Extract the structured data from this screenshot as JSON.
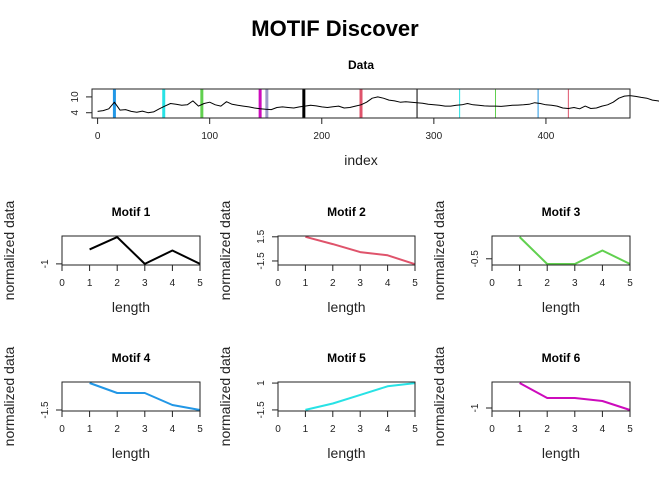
{
  "figure": {
    "title": "MOTIF Discover"
  },
  "chart_data": [
    {
      "type": "line",
      "title": "Data",
      "xlabel": "index",
      "ylabel": "",
      "xlim": [
        -5,
        475
      ],
      "ylim": [
        2,
        13
      ],
      "xticks": [
        0,
        100,
        200,
        300,
        400
      ],
      "yticks": [
        4,
        10
      ],
      "grid": false,
      "x_step": 5,
      "values": [
        4.5,
        4.8,
        5.5,
        8.0,
        5.0,
        5.2,
        4.5,
        4.2,
        4.6,
        4.0,
        4.3,
        5.5,
        6.5,
        7.5,
        7.2,
        6.8,
        7.0,
        8.5,
        6.5,
        7.5,
        8.0,
        7.0,
        6.5,
        8.2,
        7.2,
        6.8,
        6.5,
        6.2,
        5.8,
        5.5,
        5.3,
        5.2,
        6.0,
        6.2,
        6.0,
        5.8,
        6.2,
        6.5,
        6.8,
        6.6,
        6.2,
        6.0,
        6.3,
        6.5,
        5.8,
        6.0,
        6.5,
        7.0,
        8.0,
        9.5,
        10.0,
        9.5,
        8.8,
        8.5,
        8.0,
        8.2,
        8.0,
        7.8,
        7.6,
        7.2,
        7.0,
        6.8,
        6.5,
        6.5,
        6.8,
        7.0,
        7.5,
        7.0,
        6.8,
        6.6,
        6.5,
        6.5,
        6.4,
        6.6,
        6.8,
        6.9,
        7.0,
        7.2,
        7.8,
        7.5,
        7.0,
        6.8,
        6.5,
        5.8,
        5.6,
        6.0,
        5.5,
        6.5,
        5.6,
        5.8,
        6.5,
        7.0,
        8.0,
        9.5,
        10.3,
        10.5,
        10.2,
        9.8,
        9.5,
        8.8,
        8.5,
        8.0,
        7.5,
        7.2,
        7.5,
        7.0,
        9.0,
        10.0,
        6.0,
        4.0,
        4.2,
        4.5,
        4.3,
        4.2,
        4.3,
        4.4
      ],
      "markers": [
        {
          "x": 15,
          "color": "#2297E6"
        },
        {
          "x": 59,
          "color": "#28E2E5"
        },
        {
          "x": 93,
          "color": "#61D04F"
        },
        {
          "x": 145,
          "color": "#CD0BBC"
        },
        {
          "x": 151,
          "color": "#9E9AC8"
        },
        {
          "x": 184,
          "color": "#000000"
        },
        {
          "x": 235,
          "color": "#DF536B"
        },
        {
          "x": 285,
          "color": "#000000",
          "thin": true
        },
        {
          "x": 323,
          "color": "#28E2E5",
          "thin": true
        },
        {
          "x": 355,
          "color": "#61D04F",
          "thin": true
        },
        {
          "x": 393,
          "color": "#2297E6",
          "thin": true
        },
        {
          "x": 420,
          "color": "#DF536B",
          "thin": true
        }
      ]
    },
    {
      "type": "line",
      "title": "Motif 1",
      "xlabel": "length",
      "ylabel": "normalized data",
      "color": "#000000",
      "x": [
        1,
        2,
        3,
        4,
        5
      ],
      "values": [
        0.3,
        1.4,
        -1.0,
        0.2,
        -1.0
      ],
      "xlim": [
        0,
        5
      ],
      "ylim": [
        -1.1,
        1.5
      ],
      "xticks": [
        0,
        1,
        2,
        3,
        4,
        5
      ],
      "yticks": [
        -1.0
      ]
    },
    {
      "type": "line",
      "title": "Motif 2",
      "xlabel": "length",
      "ylabel": "normalized data",
      "color": "#DF536B",
      "x": [
        1,
        2,
        3,
        4,
        5
      ],
      "values": [
        1.5,
        0.6,
        -0.4,
        -0.8,
        -1.9
      ],
      "xlim": [
        0,
        5
      ],
      "ylim": [
        -2.0,
        1.6
      ],
      "xticks": [
        0,
        1,
        2,
        3,
        4,
        5
      ],
      "yticks": [
        -1.5,
        1.5
      ]
    },
    {
      "type": "line",
      "title": "Motif 3",
      "xlabel": "length",
      "ylabel": "normalized data",
      "color": "#61D04F",
      "x": [
        1,
        2,
        3,
        4,
        5
      ],
      "values": [
        1.6,
        -1.0,
        -1.0,
        0.3,
        -1.0
      ],
      "xlim": [
        0,
        5
      ],
      "ylim": [
        -1.1,
        1.7
      ],
      "xticks": [
        0,
        1,
        2,
        3,
        4,
        5
      ],
      "yticks": [
        -0.5
      ]
    },
    {
      "type": "line",
      "title": "Motif 4",
      "xlabel": "length",
      "ylabel": "normalized data",
      "color": "#2297E6",
      "x": [
        1,
        2,
        3,
        4,
        5
      ],
      "values": [
        1.2,
        0.2,
        0.2,
        -1.0,
        -1.5
      ],
      "xlim": [
        0,
        5
      ],
      "ylim": [
        -1.6,
        1.3
      ],
      "xticks": [
        0,
        1,
        2,
        3,
        4,
        5
      ],
      "yticks": [
        -1.5
      ]
    },
    {
      "type": "line",
      "title": "Motif 5",
      "xlabel": "length",
      "ylabel": "normalized data",
      "color": "#28E2E5",
      "x": [
        1,
        2,
        3,
        4,
        5
      ],
      "values": [
        -1.5,
        -0.9,
        -0.1,
        0.7,
        1.0
      ],
      "xlim": [
        0,
        5
      ],
      "ylim": [
        -1.6,
        1.1
      ],
      "xticks": [
        0,
        1,
        2,
        3,
        4,
        5
      ],
      "yticks": [
        -1.5,
        1.0
      ]
    },
    {
      "type": "line",
      "title": "Motif 6",
      "xlabel": "length",
      "ylabel": "normalized data",
      "color": "#CD0BBC",
      "x": [
        1,
        2,
        3,
        4,
        5
      ],
      "values": [
        1.5,
        0.0,
        0.0,
        -0.3,
        -1.2
      ],
      "xlim": [
        0,
        5
      ],
      "ylim": [
        -1.3,
        1.6
      ],
      "xticks": [
        0,
        1,
        2,
        3,
        4,
        5
      ],
      "yticks": [
        -1.0
      ]
    }
  ]
}
